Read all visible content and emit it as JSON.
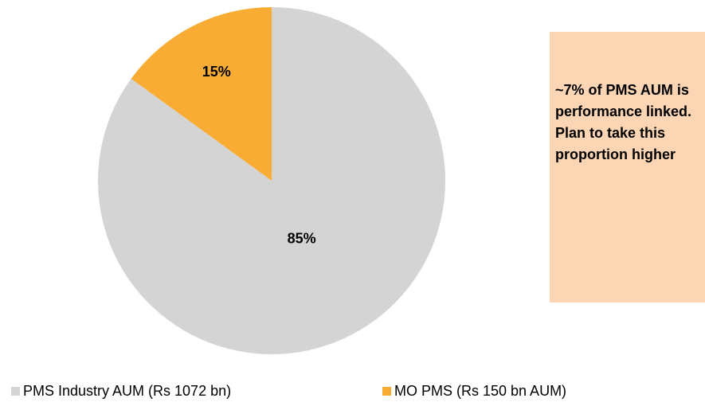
{
  "chart_data": {
    "type": "pie",
    "categories": [
      "PMS Industry AUM (Rs 1072 bn)",
      "MO PMS (Rs 150 bn AUM)"
    ],
    "values": [
      85,
      15
    ],
    "value_labels": [
      "85%",
      "15%"
    ],
    "colors": [
      "#d4d4d4",
      "#f8ac33"
    ],
    "annotation": "~7% of PMS AUM is performance linked. Plan to take this proportion higher"
  }
}
